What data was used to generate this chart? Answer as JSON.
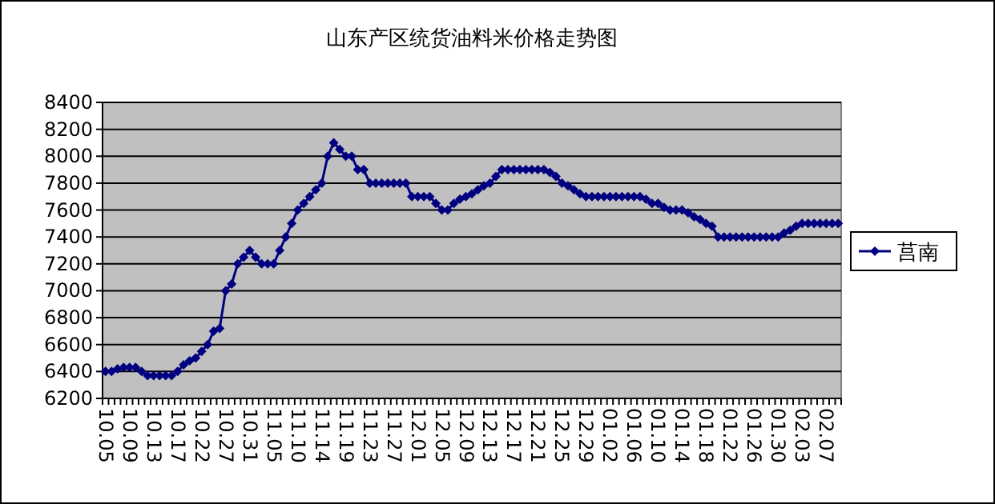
{
  "chart_data": {
    "type": "line",
    "title": "山东产区统货油料米价格走势图",
    "categories": [
      "10.05",
      null,
      null,
      null,
      "10.09",
      null,
      null,
      null,
      "10.13",
      null,
      null,
      null,
      "10.17",
      null,
      null,
      null,
      "10.22",
      null,
      null,
      null,
      "10.27",
      null,
      null,
      null,
      "10.31",
      null,
      null,
      null,
      "11.05",
      null,
      null,
      null,
      "11.10",
      null,
      null,
      null,
      "11.14",
      null,
      null,
      null,
      "11.19",
      null,
      null,
      null,
      "11.23",
      null,
      null,
      null,
      "11.27",
      null,
      null,
      null,
      "12.01",
      null,
      null,
      null,
      "12.05",
      null,
      null,
      null,
      "12.09",
      null,
      null,
      null,
      "12.13",
      null,
      null,
      null,
      "12.17",
      null,
      null,
      null,
      "12.21",
      null,
      null,
      null,
      "12.25",
      null,
      null,
      null,
      "12.29",
      null,
      null,
      null,
      "01.02",
      null,
      null,
      null,
      "01.06",
      null,
      null,
      null,
      "01.10",
      null,
      null,
      null,
      "01.14",
      null,
      null,
      null,
      "01.18",
      null,
      null,
      null,
      "01.22",
      null,
      null,
      null,
      "01.26",
      null,
      null,
      null,
      "01.30",
      null,
      null,
      null,
      "02.03",
      null,
      null,
      null,
      "02.07",
      null,
      null
    ],
    "series": [
      {
        "name": "莒南",
        "color": "#000080",
        "values": [
          6400,
          6400,
          6420,
          6430,
          6430,
          6430,
          6400,
          6370,
          6370,
          6370,
          6370,
          6370,
          6400,
          6450,
          6480,
          6500,
          6550,
          6600,
          6700,
          6720,
          7000,
          7050,
          7200,
          7250,
          7300,
          7250,
          7200,
          7200,
          7200,
          7300,
          7400,
          7500,
          7600,
          7650,
          7700,
          7750,
          7800,
          8000,
          8100,
          8050,
          8000,
          8000,
          7900,
          7900,
          7800,
          7800,
          7800,
          7800,
          7800,
          7800,
          7800,
          7700,
          7700,
          7700,
          7700,
          7650,
          7600,
          7600,
          7650,
          7680,
          7700,
          7720,
          7750,
          7780,
          7800,
          7850,
          7900,
          7900,
          7900,
          7900,
          7900,
          7900,
          7900,
          7900,
          7880,
          7850,
          7800,
          7780,
          7750,
          7720,
          7700,
          7700,
          7700,
          7700,
          7700,
          7700,
          7700,
          7700,
          7700,
          7700,
          7680,
          7650,
          7650,
          7620,
          7600,
          7600,
          7600,
          7580,
          7550,
          7530,
          7500,
          7480,
          7400,
          7400,
          7400,
          7400,
          7400,
          7400,
          7400,
          7400,
          7400,
          7400,
          7400,
          7430,
          7450,
          7480,
          7500,
          7500,
          7500,
          7500,
          7500,
          7500,
          7500
        ]
      }
    ],
    "ylim": [
      6200,
      8400
    ],
    "yticks": [
      6200,
      6400,
      6600,
      6800,
      7000,
      7200,
      7400,
      7600,
      7800,
      8000,
      8200,
      8400
    ],
    "grid": "y",
    "legend": "right",
    "marker": "diamond",
    "line_style": "solid"
  }
}
